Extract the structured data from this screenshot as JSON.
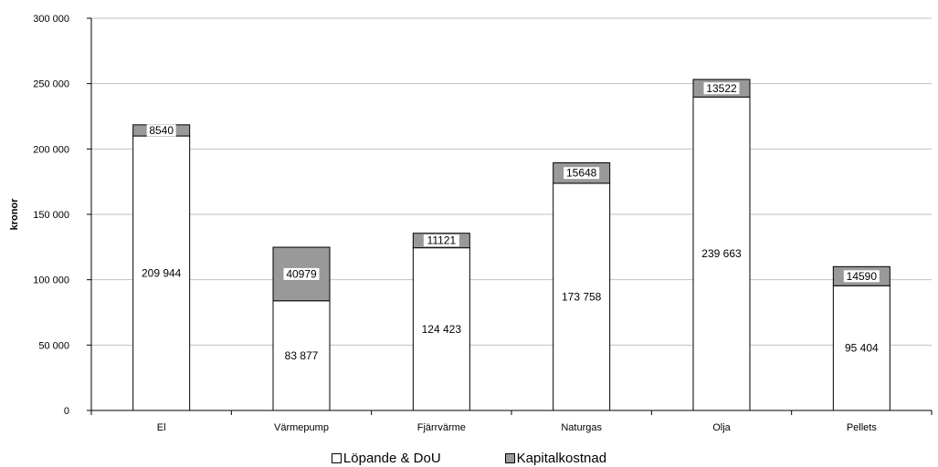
{
  "chart_data": {
    "type": "bar",
    "stacked": true,
    "categories": [
      "El",
      "Värmepump",
      "Fjärrvärme",
      "Naturgas",
      "Olja",
      "Pellets"
    ],
    "series": [
      {
        "name": "Löpande & DoU",
        "color": "#ffffff",
        "values": [
          209944,
          83877,
          124423,
          173758,
          239663,
          95404
        ],
        "labels": [
          "209 944",
          "83 877",
          "124 423",
          "173 758",
          "239 663",
          "95 404"
        ]
      },
      {
        "name": "Kapitalkostnad",
        "color": "#999999",
        "values": [
          8540,
          40979,
          11121,
          15648,
          13522,
          14590
        ],
        "labels": [
          "8540",
          "40979",
          "11121",
          "15648",
          "13522",
          "14590"
        ]
      }
    ],
    "title": "",
    "xlabel": "",
    "ylabel": "kronor",
    "ylim": [
      0,
      300000
    ],
    "yticks": [
      0,
      50000,
      100000,
      150000,
      200000,
      250000,
      300000
    ],
    "ytick_labels": [
      "0",
      "50 000",
      "100 000",
      "150 000",
      "200 000",
      "250 000",
      "300 000"
    ],
    "grid": true,
    "legend_position": "bottom"
  }
}
